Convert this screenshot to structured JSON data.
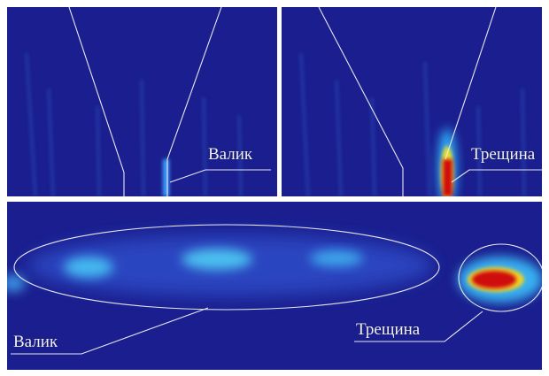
{
  "top_left": {
    "label": "Валик"
  },
  "top_right": {
    "label": "Трещина"
  },
  "bottom": {
    "labels": [
      "Валик",
      "Трещина"
    ]
  }
}
